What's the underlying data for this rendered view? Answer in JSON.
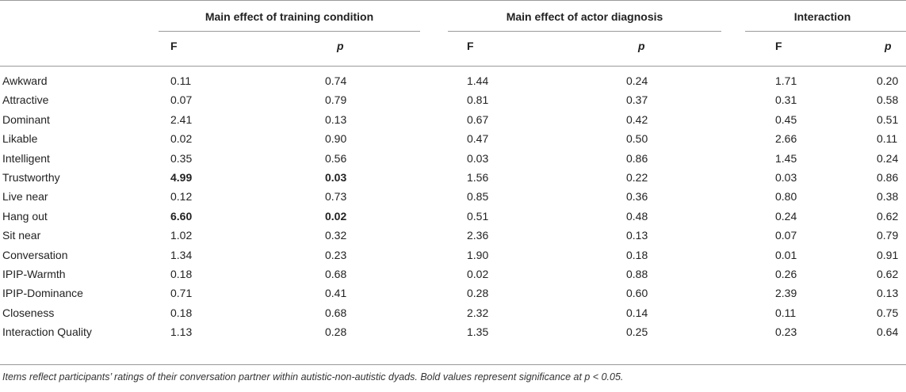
{
  "groups": {
    "training": "Main effect of training condition",
    "actor": "Main effect of actor diagnosis",
    "interaction": "Interaction"
  },
  "subheaders": {
    "f": "F",
    "p": "p"
  },
  "rows": [
    {
      "label": "Awkward",
      "tF": "0.11",
      "tP": "0.74",
      "aF": "1.44",
      "aP": "0.24",
      "iF": "1.71",
      "iP": "0.20"
    },
    {
      "label": "Attractive",
      "tF": "0.07",
      "tP": "0.79",
      "aF": "0.81",
      "aP": "0.37",
      "iF": "0.31",
      "iP": "0.58"
    },
    {
      "label": "Dominant",
      "tF": "2.41",
      "tP": "0.13",
      "aF": "0.67",
      "aP": "0.42",
      "iF": "0.45",
      "iP": "0.51"
    },
    {
      "label": "Likable",
      "tF": "0.02",
      "tP": "0.90",
      "aF": "0.47",
      "aP": "0.50",
      "iF": "2.66",
      "iP": "0.11"
    },
    {
      "label": "Intelligent",
      "tF": "0.35",
      "tP": "0.56",
      "aF": "0.03",
      "aP": "0.86",
      "iF": "1.45",
      "iP": "0.24"
    },
    {
      "label": "Trustworthy",
      "tF": "4.99",
      "tP": "0.03",
      "aF": "1.56",
      "aP": "0.22",
      "iF": "0.03",
      "iP": "0.86"
    },
    {
      "label": "Live near",
      "tF": "0.12",
      "tP": "0.73",
      "aF": "0.85",
      "aP": "0.36",
      "iF": "0.80",
      "iP": "0.38"
    },
    {
      "label": "Hang out",
      "tF": "6.60",
      "tP": "0.02",
      "aF": "0.51",
      "aP": "0.48",
      "iF": "0.24",
      "iP": "0.62"
    },
    {
      "label": "Sit near",
      "tF": "1.02",
      "tP": "0.32",
      "aF": "2.36",
      "aP": "0.13",
      "iF": "0.07",
      "iP": "0.79"
    },
    {
      "label": "Conversation",
      "tF": "1.34",
      "tP": "0.23",
      "aF": "1.90",
      "aP": "0.18",
      "iF": "0.01",
      "iP": "0.91"
    },
    {
      "label": "IPIP-Warmth",
      "tF": "0.18",
      "tP": "0.68",
      "aF": "0.02",
      "aP": "0.88",
      "iF": "0.26",
      "iP": "0.62"
    },
    {
      "label": "IPIP-Dominance",
      "tF": "0.71",
      "tP": "0.41",
      "aF": "0.28",
      "aP": "0.60",
      "iF": "2.39",
      "iP": "0.13"
    },
    {
      "label": "Closeness",
      "tF": "0.18",
      "tP": "0.68",
      "aF": "2.32",
      "aP": "0.14",
      "iF": "0.11",
      "iP": "0.75"
    },
    {
      "label": "Interaction Quality",
      "tF": "1.13",
      "tP": "0.28",
      "aF": "1.35",
      "aP": "0.25",
      "iF": "0.23",
      "iP": "0.64"
    }
  ],
  "bold_rows": [
    "Trustworthy",
    "Hang out"
  ],
  "note": "Items reflect participants’ ratings of their conversation partner within autistic-non-autistic dyads. Bold values represent significance at p < 0.05."
}
